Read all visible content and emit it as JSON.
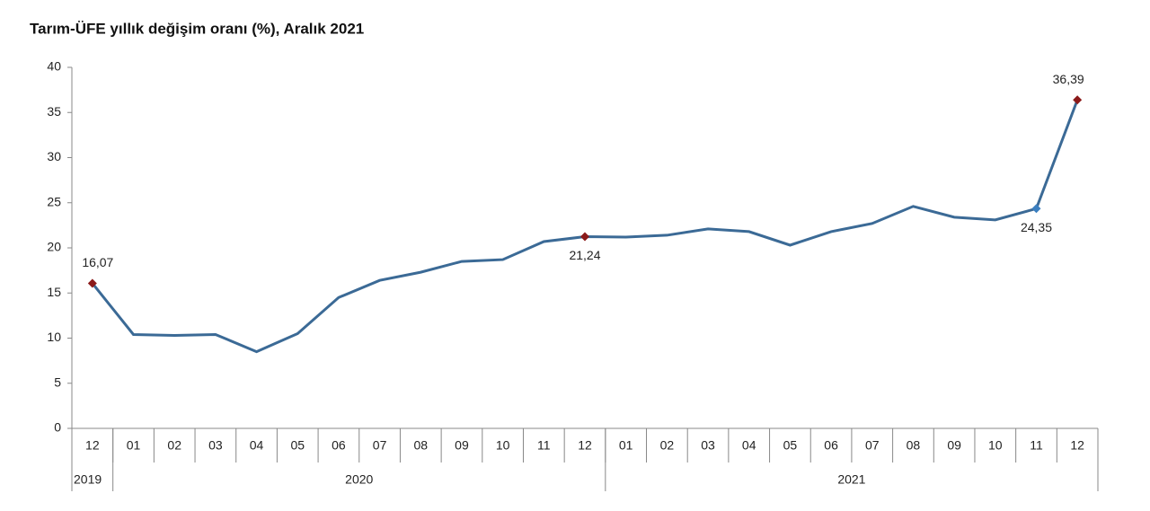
{
  "chart_data": {
    "type": "line",
    "title": "Tarım-ÜFE yıllık değişim oranı (%), Aralık 2021",
    "categories": [
      "12",
      "01",
      "02",
      "03",
      "04",
      "05",
      "06",
      "07",
      "08",
      "09",
      "10",
      "11",
      "12",
      "01",
      "02",
      "03",
      "04",
      "05",
      "06",
      "07",
      "08",
      "09",
      "10",
      "11",
      "12"
    ],
    "groups": [
      {
        "label": "2019",
        "span": 1
      },
      {
        "label": "2020",
        "span": 12
      },
      {
        "label": "2021",
        "span": 12
      }
    ],
    "series": [
      {
        "color": "#3b6a96",
        "values": [
          16.07,
          10.4,
          10.3,
          10.4,
          8.5,
          10.5,
          14.5,
          16.4,
          17.3,
          18.5,
          18.7,
          20.7,
          21.24,
          21.2,
          21.4,
          22.1,
          21.8,
          20.3,
          21.8,
          22.7,
          24.6,
          23.4,
          23.1,
          24.35,
          36.39
        ],
        "value_labels": [
          "16,07",
          null,
          null,
          null,
          null,
          null,
          null,
          null,
          null,
          null,
          null,
          null,
          "21,24",
          null,
          null,
          null,
          null,
          null,
          null,
          null,
          null,
          null,
          null,
          "24,35",
          "36,39"
        ],
        "marker_colors": [
          "#8b1a1a",
          null,
          null,
          null,
          null,
          null,
          null,
          null,
          null,
          null,
          null,
          null,
          "#8b1a1a",
          null,
          null,
          null,
          null,
          null,
          null,
          null,
          null,
          null,
          null,
          "#3b7fc0",
          "#8b1a1a"
        ]
      }
    ],
    "ylim": [
      0,
      40
    ],
    "yticks": [
      0,
      5,
      10,
      15,
      20,
      25,
      30,
      35,
      40
    ],
    "grid": false
  }
}
